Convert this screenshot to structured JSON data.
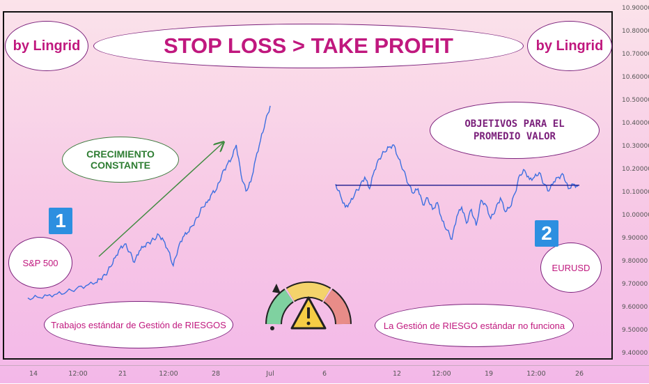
{
  "title": "STOP LOSS > TAKE PROFIT",
  "author_left": "by Lingrid",
  "author_right": "by Lingrid",
  "labels": {
    "growth": "CRECIMIENTO CONSTANTE",
    "sp500": "S&P 500",
    "eurusd": "EURUSD",
    "objectives": "OBJETIVOS PARA EL PROMEDIO VALOR",
    "standard_works": "Trabajos estándar de Gestión de RIESGOS",
    "standard_fails": "La Gestión de RIESGO estándar no funciona",
    "badge_1": "1",
    "badge_2": "2"
  },
  "colors": {
    "line": "#3d6fe0",
    "avg_line": "#1a1a8c",
    "arrow": "#3f8a3f",
    "text": "#c0187e"
  },
  "icon": "risk-gauge-warning-icon",
  "chart_data": {
    "type": "line",
    "y_axis_ticks": [
      "10.90000",
      "10.80000",
      "10.70000",
      "10.60000",
      "10.50000",
      "10.40000",
      "10.30000",
      "10.20000",
      "10.10000",
      "10.00000",
      "9.90000",
      "9.80000",
      "9.70000",
      "9.60000",
      "9.50000",
      "9.40000"
    ],
    "ylim": [
      9.38,
      10.91
    ],
    "x_axis_ticks": [
      "14",
      "12:00",
      "21",
      "12:00",
      "28",
      "Jul",
      "6",
      "12",
      "12:00",
      "19",
      "12:00",
      "26"
    ],
    "series": [
      {
        "x_index": [
          0,
          4,
          8,
          12,
          16,
          20,
          24,
          28,
          30,
          32,
          34,
          36,
          38,
          40,
          42,
          44,
          46,
          48,
          50,
          52,
          54,
          56,
          58,
          60,
          62,
          64,
          66,
          68,
          70,
          72,
          74,
          76,
          78,
          80,
          82,
          84,
          86,
          88,
          90,
          92,
          94,
          96,
          98,
          100
        ],
        "values": [
          9.645,
          9.648,
          9.655,
          9.662,
          9.672,
          9.685,
          9.698,
          9.712,
          9.728,
          9.745,
          9.78,
          9.82,
          9.86,
          9.88,
          9.845,
          9.8,
          9.85,
          9.87,
          9.885,
          9.9,
          9.92,
          9.895,
          9.85,
          9.785,
          9.86,
          9.91,
          9.93,
          9.96,
          9.995,
          10.04,
          10.06,
          10.1,
          10.12,
          10.18,
          10.22,
          10.25,
          10.31,
          10.18,
          10.11,
          10.15,
          10.25,
          10.33,
          10.41,
          10.48
        ]
      },
      {
        "x_index": [
          0,
          4,
          8,
          12,
          16,
          20,
          24,
          28,
          32,
          36,
          40,
          44,
          48,
          52,
          56,
          60,
          64,
          68,
          72,
          76,
          80,
          84,
          88,
          92,
          96,
          100,
          104,
          108,
          112,
          116,
          120,
          124,
          128,
          132,
          136,
          140,
          144,
          148,
          152,
          156,
          160,
          164,
          168,
          172,
          176,
          180,
          184,
          188,
          192,
          196,
          200
        ],
        "values": [
          10.14,
          10.09,
          10.04,
          10.06,
          10.1,
          10.13,
          10.17,
          10.12,
          10.2,
          10.25,
          10.28,
          10.3,
          10.31,
          10.25,
          10.2,
          10.14,
          10.1,
          10.12,
          10.05,
          10.08,
          10.03,
          10.06,
          9.98,
          9.94,
          9.9,
          10.0,
          10.04,
          9.97,
          10.03,
          9.96,
          10.07,
          10.05,
          9.99,
          10.03,
          10.08,
          10.02,
          10.04,
          10.1,
          10.18,
          10.2,
          10.16,
          10.17,
          10.19,
          10.14,
          10.11,
          10.15,
          10.17,
          10.18,
          10.12,
          10.14,
          10.13
        ]
      }
    ],
    "average_level": 10.135
  }
}
